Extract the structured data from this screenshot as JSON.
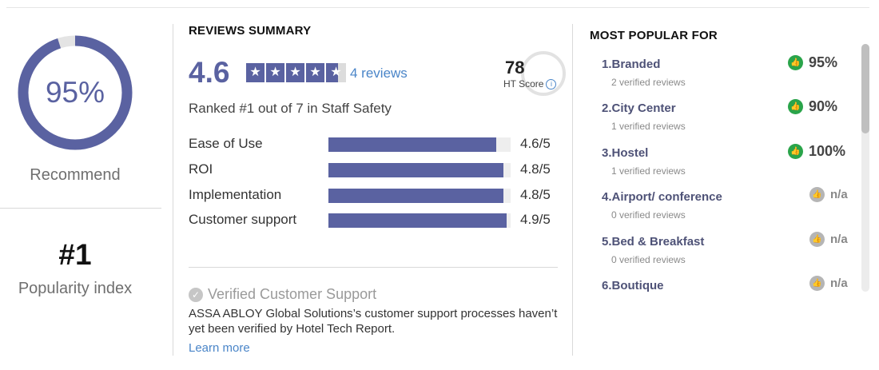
{
  "left": {
    "recommend_percent": "95%",
    "recommend_fraction": 0.95,
    "recommend_label": "Recommend",
    "popularity_rank": "#1",
    "popularity_label": "Popularity index"
  },
  "summary": {
    "title": "REVIEWS SUMMARY",
    "rating": "4.6",
    "rating_value": 4.6,
    "rating_max": 5,
    "reviews_link": "4 reviews",
    "ht_score": "78",
    "ht_score_label": "HT Score",
    "ranked_text": "Ranked #1 out of 7 in Staff Safety",
    "metrics": [
      {
        "label": "Ease of Use",
        "value": "4.6/5",
        "score": 4.6
      },
      {
        "label": "ROI",
        "value": "4.8/5",
        "score": 4.8
      },
      {
        "label": "Implementation",
        "value": "4.8/5",
        "score": 4.8
      },
      {
        "label": "Customer support",
        "value": "4.9/5",
        "score": 4.9
      }
    ],
    "verified_title": "Verified Customer Support",
    "verified_desc": "ASSA ABLOY Global Solutions’s customer support processes haven’t yet been verified by Hotel Tech Report.",
    "learn_more": "Learn more"
  },
  "popular": {
    "title": "MOST POPULAR FOR",
    "items": [
      {
        "name": "1.Branded",
        "sub": "2 verified reviews",
        "score": "95%",
        "status": "positive"
      },
      {
        "name": "2.City Center",
        "sub": "1 verified reviews",
        "score": "90%",
        "status": "positive"
      },
      {
        "name": "3.Hostel",
        "sub": "1 verified reviews",
        "score": "100%",
        "status": "positive"
      },
      {
        "name": "4.Airport/ conference",
        "sub": "0 verified reviews",
        "score": "n/a",
        "status": "none"
      },
      {
        "name": "5.Bed & Breakfast",
        "sub": "0 verified reviews",
        "score": "n/a",
        "status": "none"
      },
      {
        "name": "6.Boutique",
        "sub": "",
        "score": "n/a",
        "status": "none"
      }
    ]
  },
  "colors": {
    "accent": "#5a62a1",
    "link": "#4a85c8",
    "positive": "#2aa44a",
    "neutral": "#b5b5b5"
  },
  "icons": {
    "thumb": "thumbs-up-icon",
    "verified": "check-circle-icon",
    "info": "info-icon",
    "star": "star-icon"
  }
}
